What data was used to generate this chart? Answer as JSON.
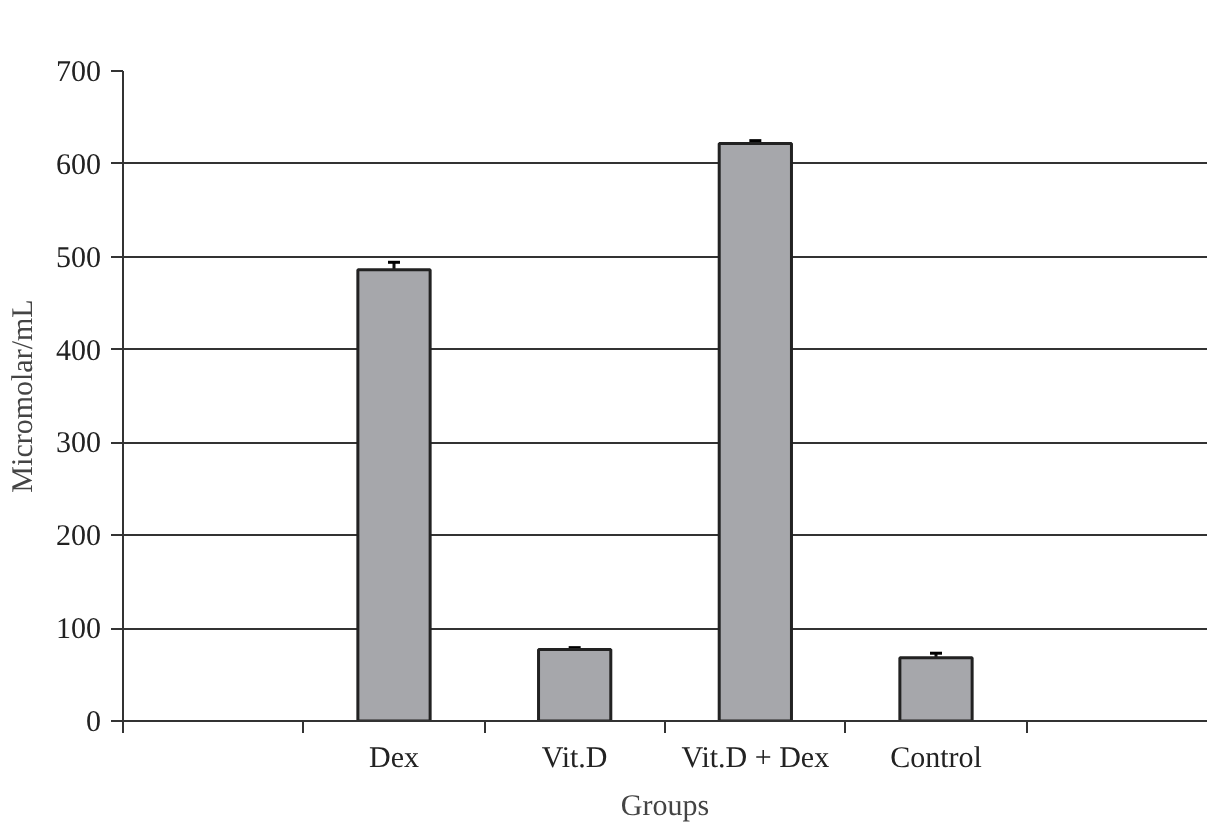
{
  "chart_data": {
    "type": "bar",
    "xlabel": "Groups",
    "ylabel": "Micromolar/mL",
    "categories": [
      null,
      "Dex",
      "Vit.D",
      "Vit.D + Dex",
      "Control",
      null
    ],
    "values": [
      null,
      486,
      77,
      622,
      68,
      null
    ],
    "errors": [
      null,
      8,
      2,
      3,
      5,
      null
    ],
    "color": "#a6a7ab",
    "ylim": [
      0,
      700
    ],
    "yticks": [
      0,
      100,
      200,
      300,
      400,
      500,
      600,
      700
    ],
    "grid": "y"
  }
}
